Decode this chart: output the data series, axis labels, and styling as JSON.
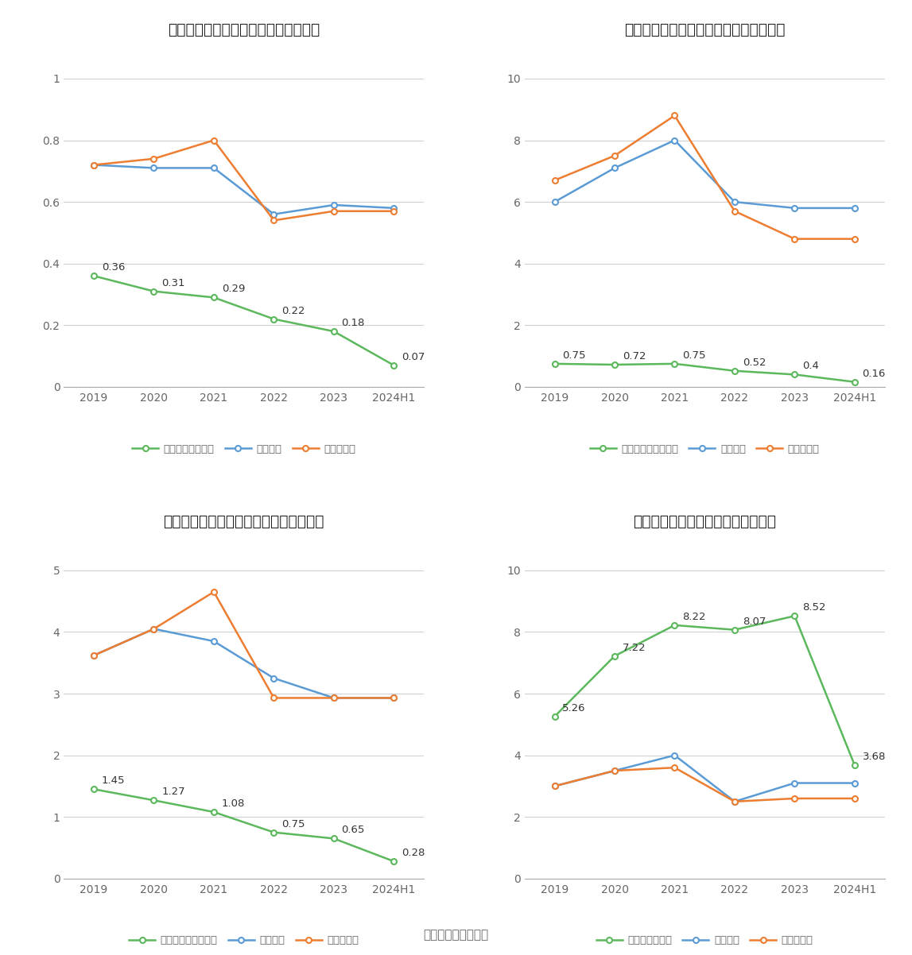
{
  "categories": [
    "2019",
    "2020",
    "2021",
    "2022",
    "2023",
    "2024H1"
  ],
  "charts": [
    {
      "title": "建设机械历年总资产周转率情况（次）",
      "company_data": [
        0.36,
        0.31,
        0.29,
        0.22,
        0.18,
        0.07
      ],
      "industry_mean": [
        0.72,
        0.71,
        0.71,
        0.56,
        0.59,
        0.58
      ],
      "industry_median": [
        0.72,
        0.74,
        0.8,
        0.54,
        0.57,
        0.57
      ],
      "ylim": [
        0,
        1.1
      ],
      "yticks": [
        0,
        0.2,
        0.4,
        0.6,
        0.8,
        1
      ],
      "company_label_full": "公司总资产周转率"
    },
    {
      "title": "建设机械历年固定资产周转率情况（次）",
      "company_data": [
        0.75,
        0.72,
        0.75,
        0.52,
        0.4,
        0.16
      ],
      "industry_mean": [
        6.0,
        7.1,
        8.0,
        6.0,
        5.8,
        5.8
      ],
      "industry_median": [
        6.7,
        7.5,
        8.8,
        5.7,
        4.8,
        4.8
      ],
      "ylim": [
        0,
        11
      ],
      "yticks": [
        0,
        2,
        4,
        6,
        8,
        10
      ],
      "company_label_full": "公司固定资产周转率"
    },
    {
      "title": "建设机械历年应收账款周转率情况（次）",
      "company_data": [
        1.45,
        1.27,
        1.08,
        0.75,
        0.65,
        0.28
      ],
      "industry_mean": [
        3.62,
        4.05,
        3.85,
        3.25,
        2.93,
        2.93
      ],
      "industry_median": [
        3.62,
        4.05,
        4.65,
        2.93,
        2.93,
        2.93
      ],
      "ylim": [
        0,
        5.5
      ],
      "yticks": [
        0,
        1,
        2,
        3,
        4,
        5
      ],
      "company_label_full": "公司应收账款周转率"
    },
    {
      "title": "建设机械历年存货周转率情况（次）",
      "company_data": [
        5.26,
        7.22,
        8.22,
        8.07,
        8.52,
        3.68
      ],
      "industry_mean": [
        3.0,
        3.5,
        4.0,
        2.5,
        3.1,
        3.1
      ],
      "industry_median": [
        3.0,
        3.5,
        3.6,
        2.5,
        2.6,
        2.6
      ],
      "ylim": [
        0,
        11
      ],
      "yticks": [
        0,
        2,
        4,
        6,
        8,
        10
      ],
      "company_label_full": "公司存货周转率"
    }
  ],
  "colors": {
    "company": "#5cb85c",
    "industry_mean": "#5b9bd5",
    "industry_median": "#ed7d31"
  },
  "source_text": "数据来源：恒生聚源",
  "background_color": "#ffffff",
  "grid_color": "#d0d0d0"
}
